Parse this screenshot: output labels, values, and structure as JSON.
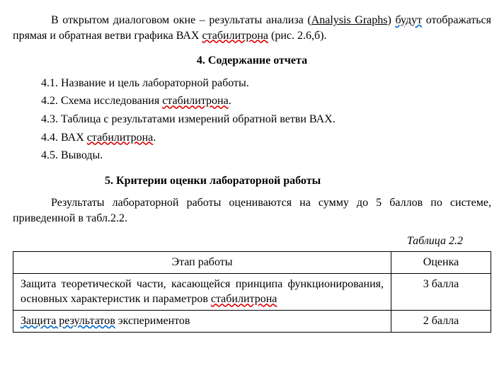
{
  "p1a": "В открытом диалоговом окне – результаты анализа (",
  "p1link": "Analysis Graphs",
  "p1b": ") ",
  "p1c": "будут",
  "p1d": " отображаться прямая и обратная ветви графика ВАХ ",
  "p1e": "стабилитрона",
  "p1f": " (рис. 2.6,б).",
  "h4": "4. Содержание отчета",
  "l41": "4.1. Название и цель лабораторной работы.",
  "l42": "4.2. Схема исследования ",
  "l42b": "стабилитрона",
  "l42c": ".",
  "l43": "4.3. Таблица с результатами измерений обратной ветви ВАХ.",
  "l44": "4.4. ВАХ ",
  "l44b": "стабилитрона",
  "l44c": ".",
  "l45": "4.5. Выводы.",
  "h5": "5. Критерии оценки лабораторной работы",
  "p2": "Результаты лабораторной работы оцениваются на сумму до 5 баллов по системе, приведенной в табл.2.2.",
  "tablecap": "Таблица 2.2",
  "th1": "Этап работы",
  "th2": "Оценка",
  "r1": "Защита теоретической части, касающейся принципа функционирования, основных характеристик и параметров ",
  "r1b": "стабилитрона",
  "r1score": "3 балла",
  "r2a": "Защита",
  "r2b": "  результатов",
  "r2c": " экспериментов",
  "r2score": "2 балла"
}
